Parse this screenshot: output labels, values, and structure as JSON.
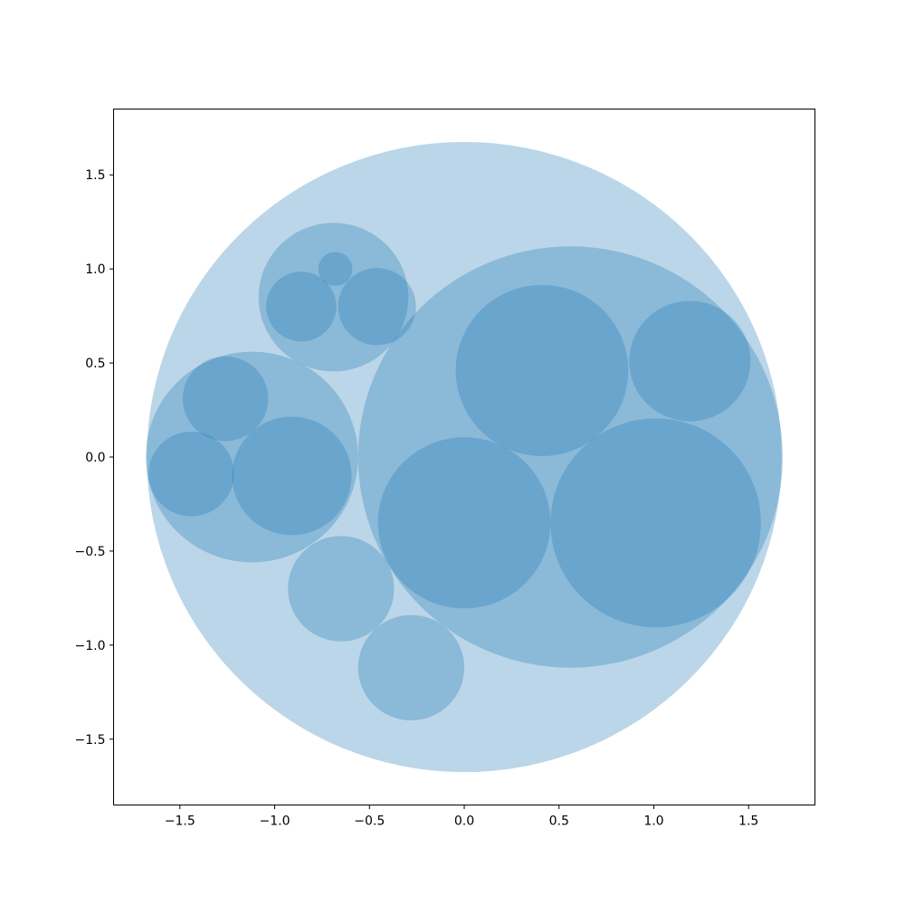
{
  "chart_data": {
    "type": "circle-packing",
    "xlim": [
      -1.85,
      1.85
    ],
    "ylim": [
      -1.85,
      1.85
    ],
    "xticks": [
      -1.5,
      -1.0,
      -0.5,
      0.0,
      0.5,
      1.0,
      1.5
    ],
    "yticks": [
      -1.5,
      -1.0,
      -0.5,
      0.0,
      0.5,
      1.0,
      1.5
    ],
    "xtick_labels": [
      "−1.5",
      "−1.0",
      "−0.5",
      "0.0",
      "0.5",
      "1.0",
      "1.5"
    ],
    "ytick_labels": [
      "−1.5",
      "−1.0",
      "−0.5",
      "0.0",
      "0.5",
      "1.0",
      "1.5"
    ],
    "color": "#1f77b4",
    "alpha": 0.3,
    "grid": false,
    "circles": [
      {
        "x": 0.0,
        "y": 0.0,
        "r": 1.675,
        "level": 0
      },
      {
        "x": 0.56,
        "y": 0.0,
        "r": 1.12,
        "level": 1
      },
      {
        "x": -1.12,
        "y": -0.0,
        "r": 0.56,
        "level": 1
      },
      {
        "x": -0.69,
        "y": 0.85,
        "r": 0.395,
        "level": 1
      },
      {
        "x": -0.65,
        "y": -0.7,
        "r": 0.28,
        "level": 1
      },
      {
        "x": -0.28,
        "y": -1.12,
        "r": 0.28,
        "level": 1
      },
      {
        "x": 0.41,
        "y": 0.46,
        "r": 0.455,
        "level": 2
      },
      {
        "x": 1.19,
        "y": 0.51,
        "r": 0.32,
        "level": 2
      },
      {
        "x": 0.0,
        "y": -0.35,
        "r": 0.455,
        "level": 2
      },
      {
        "x": 1.01,
        "y": -0.35,
        "r": 0.555,
        "level": 2
      },
      {
        "x": -1.26,
        "y": 0.31,
        "r": 0.225,
        "level": 2
      },
      {
        "x": -1.44,
        "y": -0.09,
        "r": 0.225,
        "level": 2
      },
      {
        "x": -0.91,
        "y": -0.1,
        "r": 0.315,
        "level": 2
      },
      {
        "x": -0.86,
        "y": 0.8,
        "r": 0.185,
        "level": 2
      },
      {
        "x": -0.46,
        "y": 0.8,
        "r": 0.205,
        "level": 2
      },
      {
        "x": -0.68,
        "y": 1.0,
        "r": 0.09,
        "level": 2
      }
    ]
  }
}
